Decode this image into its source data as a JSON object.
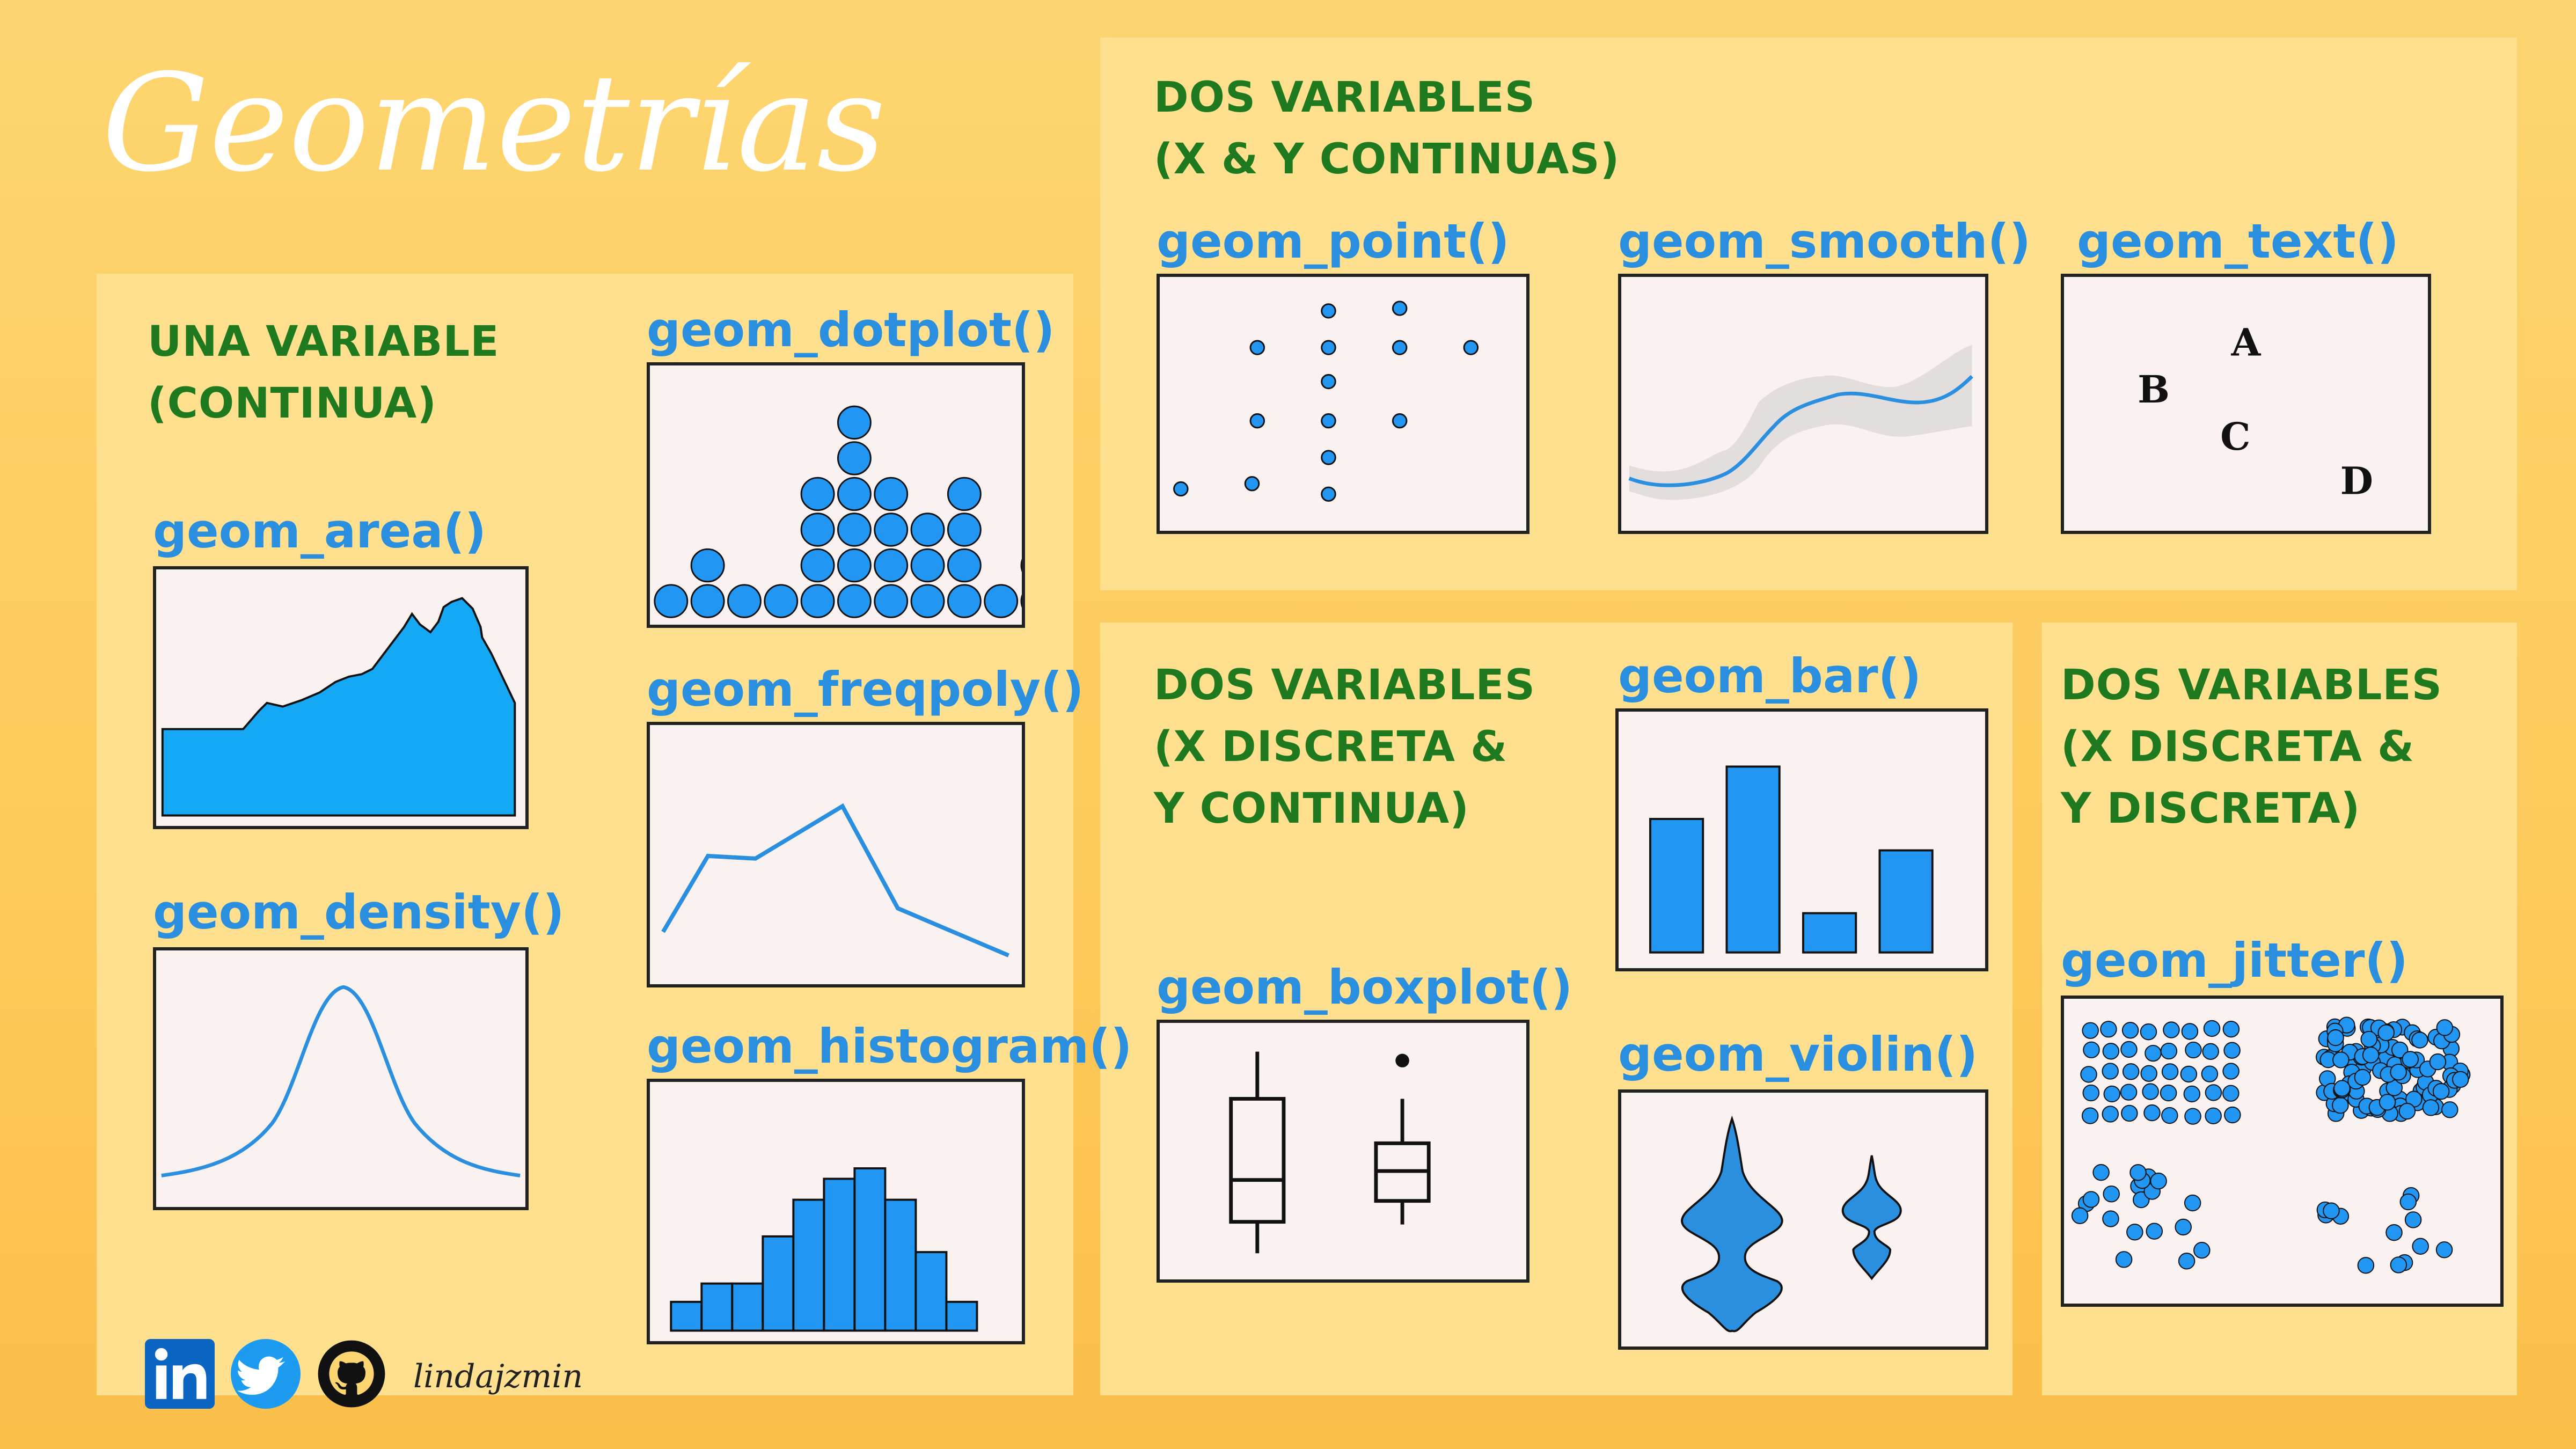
{
  "title": "Geometrías",
  "sections": {
    "una": "UNA VARIABLE\n(CONTINUA)",
    "dos_continuas": "DOS VARIABLES\n(X & Y CONTINUAS)",
    "dos_discreta_continua": "DOS VARIABLES\n(X DISCRETA &\nY CONTINUA)",
    "dos_discreta_discreta": "DOS VARIABLES\n(X DISCRETA &\nY DISCRETA)"
  },
  "geoms": {
    "area": "geom_area()",
    "density": "geom_density()",
    "dotplot": "geom_dotplot()",
    "freqpoly": "geom_freqpoly()",
    "histogram": "geom_histogram()",
    "point": "geom_point()",
    "smooth": "geom_smooth()",
    "text": "geom_text()",
    "bar": "geom_bar()",
    "boxplot": "geom_boxplot()",
    "violin": "geom_violin()",
    "jitter": "geom_jitter()"
  },
  "text_plot_labels": [
    "A",
    "B",
    "C",
    "D"
  ],
  "author": "lindajzmin",
  "icons": [
    "linkedin-icon",
    "twitter-icon",
    "github-icon"
  ],
  "colors": {
    "background": "#fdd570",
    "panel": "#fee08f",
    "section_title": "#1f7a1f",
    "geom_title": "#2b8fe0",
    "fill_blue": "#2196f3",
    "plot_bg": "#faf1f1"
  }
}
